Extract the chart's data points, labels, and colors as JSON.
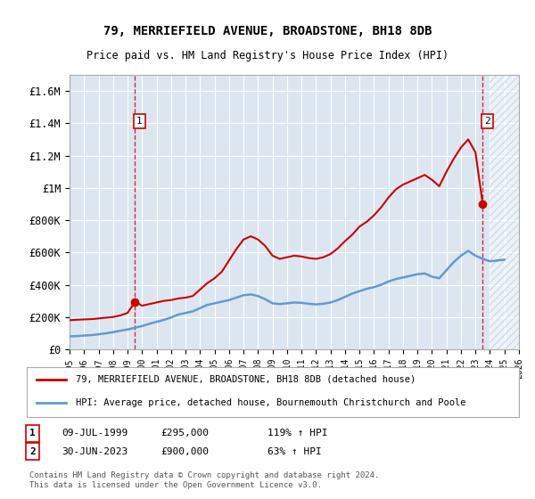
{
  "title": "79, MERRIEFIELD AVENUE, BROADSTONE, BH18 8DB",
  "subtitle": "Price paid vs. HM Land Registry's House Price Index (HPI)",
  "legend_line1": "79, MERRIEFIELD AVENUE, BROADSTONE, BH18 8DB (detached house)",
  "legend_line2": "HPI: Average price, detached house, Bournemouth Christchurch and Poole",
  "note1_label": "1",
  "note1_date": "09-JUL-1999",
  "note1_price": "£295,000",
  "note1_hpi": "119% ↑ HPI",
  "note2_label": "2",
  "note2_date": "30-JUN-2023",
  "note2_price": "£900,000",
  "note2_hpi": "63% ↑ HPI",
  "copyright": "Contains HM Land Registry data © Crown copyright and database right 2024.\nThis data is licensed under the Open Government Licence v3.0.",
  "xmin": 1995,
  "xmax": 2026,
  "ymin": 0,
  "ymax": 1700000,
  "yticks": [
    0,
    200000,
    400000,
    600000,
    800000,
    1000000,
    1200000,
    1400000,
    1600000
  ],
  "ytick_labels": [
    "£0",
    "£200K",
    "£400K",
    "£600K",
    "£800K",
    "£1M",
    "£1.2M",
    "£1.4M",
    "£1.6M"
  ],
  "xticks": [
    1995,
    1996,
    1997,
    1998,
    1999,
    2000,
    2001,
    2002,
    2003,
    2004,
    2005,
    2006,
    2007,
    2008,
    2009,
    2010,
    2011,
    2012,
    2013,
    2014,
    2015,
    2016,
    2017,
    2018,
    2019,
    2020,
    2021,
    2022,
    2023,
    2024,
    2025,
    2026
  ],
  "bg_color": "#dce6f1",
  "plot_bg": "#dce6f1",
  "line_color_red": "#cc0000",
  "line_color_blue": "#6699cc",
  "hatch_color": "#b0c4de",
  "point1_x": 1999.52,
  "point1_y": 295000,
  "point2_x": 2023.5,
  "point2_y": 900000,
  "vline1_x": 1999.52,
  "vline2_x": 2023.5,
  "red_line_x": [
    1995.0,
    1995.5,
    1996.0,
    1996.5,
    1997.0,
    1997.5,
    1998.0,
    1998.5,
    1999.0,
    1999.52,
    2000.0,
    2000.5,
    2001.0,
    2001.5,
    2002.0,
    2002.5,
    2003.0,
    2003.5,
    2004.0,
    2004.5,
    2005.0,
    2005.5,
    2006.0,
    2006.5,
    2007.0,
    2007.5,
    2008.0,
    2008.5,
    2009.0,
    2009.5,
    2010.0,
    2010.5,
    2011.0,
    2011.5,
    2012.0,
    2012.5,
    2013.0,
    2013.5,
    2014.0,
    2014.5,
    2015.0,
    2015.5,
    2016.0,
    2016.5,
    2017.0,
    2017.5,
    2018.0,
    2018.5,
    2019.0,
    2019.5,
    2020.0,
    2020.5,
    2021.0,
    2021.5,
    2022.0,
    2022.5,
    2023.0,
    2023.5
  ],
  "red_line_y": [
    180000,
    183000,
    185000,
    187000,
    191000,
    196000,
    200000,
    210000,
    225000,
    295000,
    270000,
    280000,
    290000,
    300000,
    305000,
    315000,
    320000,
    330000,
    370000,
    410000,
    440000,
    480000,
    550000,
    620000,
    680000,
    700000,
    680000,
    640000,
    580000,
    560000,
    570000,
    580000,
    575000,
    565000,
    560000,
    570000,
    590000,
    625000,
    670000,
    710000,
    760000,
    790000,
    830000,
    880000,
    940000,
    990000,
    1020000,
    1040000,
    1060000,
    1080000,
    1050000,
    1010000,
    1100000,
    1180000,
    1250000,
    1300000,
    1220000,
    900000
  ],
  "blue_line_x": [
    1995.0,
    1995.5,
    1996.0,
    1996.5,
    1997.0,
    1997.5,
    1998.0,
    1998.5,
    1999.0,
    1999.5,
    2000.0,
    2000.5,
    2001.0,
    2001.5,
    2002.0,
    2002.5,
    2003.0,
    2003.5,
    2004.0,
    2004.5,
    2005.0,
    2005.5,
    2006.0,
    2006.5,
    2007.0,
    2007.5,
    2008.0,
    2008.5,
    2009.0,
    2009.5,
    2010.0,
    2010.5,
    2011.0,
    2011.5,
    2012.0,
    2012.5,
    2013.0,
    2013.5,
    2014.0,
    2014.5,
    2015.0,
    2015.5,
    2016.0,
    2016.5,
    2017.0,
    2017.5,
    2018.0,
    2018.5,
    2019.0,
    2019.5,
    2020.0,
    2020.5,
    2021.0,
    2021.5,
    2022.0,
    2022.5,
    2023.0,
    2023.5,
    2024.0,
    2024.5,
    2025.0
  ],
  "blue_line_y": [
    80000,
    82000,
    85000,
    88000,
    93000,
    99000,
    106000,
    115000,
    123000,
    133000,
    144000,
    158000,
    170000,
    182000,
    197000,
    215000,
    225000,
    235000,
    255000,
    275000,
    285000,
    295000,
    305000,
    320000,
    335000,
    340000,
    330000,
    310000,
    285000,
    280000,
    285000,
    290000,
    288000,
    282000,
    278000,
    282000,
    290000,
    305000,
    325000,
    345000,
    360000,
    375000,
    385000,
    400000,
    420000,
    435000,
    445000,
    455000,
    465000,
    470000,
    450000,
    440000,
    490000,
    540000,
    580000,
    610000,
    580000,
    560000,
    545000,
    550000,
    555000
  ]
}
